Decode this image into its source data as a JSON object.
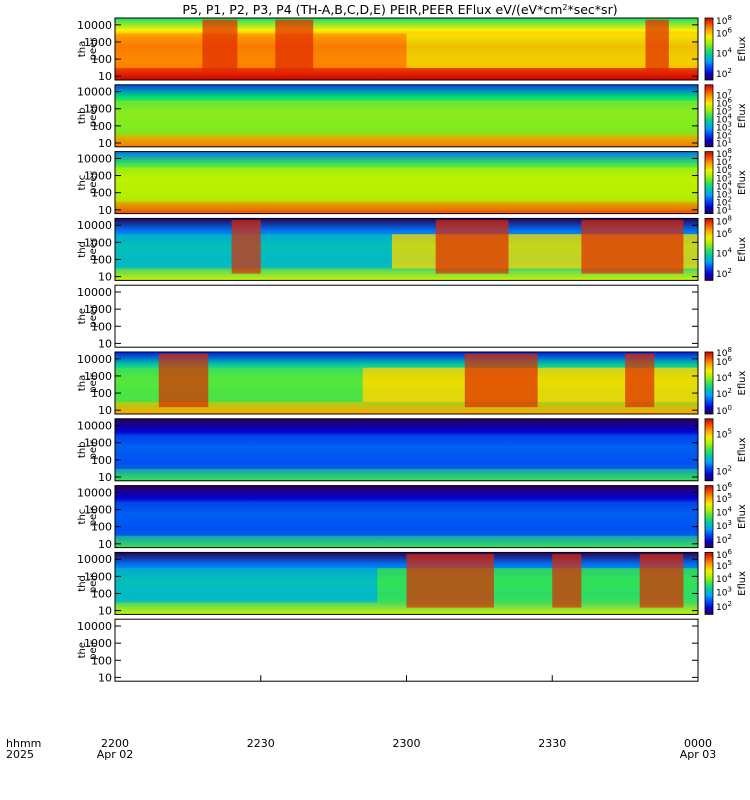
{
  "chart_data": {
    "type": "heatmap",
    "title": "P5, P1, P2, P3, P4 (TH-A,B,C,D,E) PEIR,PEER EFlux eV/(eV*cm2*sec*sr)",
    "title_parts": {
      "main": "P5, P1, P2, P3, P4 (TH-A,B,C,D,E) PEIR,PEER EFlux eV/(eV*cm",
      "sup": "2",
      "tail": "*sec*sr)"
    },
    "colorbar_label": "Eflux",
    "x_axis": {
      "ticks": [
        "2200",
        "2230",
        "2300",
        "2330",
        "0000"
      ],
      "tick_hours": [
        22.0,
        22.5,
        23.0,
        23.5,
        24.0
      ],
      "range_hours": [
        22.0,
        24.0
      ],
      "date_first": "Apr 02",
      "date_last": "Apr 03",
      "label_top": "hhmm",
      "label_bottom": "2025"
    },
    "y_axis_ticks": [
      "10",
      "100",
      "1000",
      "10000"
    ],
    "y_scale": "log",
    "y_range_eV": [
      6,
      25000
    ],
    "panels": [
      {
        "probe": "tha",
        "species": "peer",
        "label_top": "tha",
        "label_bottom": "peer",
        "data": "spectrogram",
        "cbar_ticks": [
          {
            "e": "2",
            "f": 0.1
          },
          {
            "e": "4",
            "f": 0.43
          },
          {
            "e": "6",
            "f": 0.75
          },
          {
            "e": "8",
            "f": 0.95
          }
        ],
        "bands": [
          {
            "from": 22.0,
            "to": 23.0,
            "level": 0.82
          },
          {
            "from": 23.0,
            "to": 24.0,
            "level": 0.7
          }
        ],
        "bursts": [
          [
            22.3,
            22.42
          ],
          [
            22.55,
            22.68
          ],
          [
            23.82,
            23.9
          ]
        ]
      },
      {
        "probe": "thb",
        "species": "peer",
        "label_top": "thb",
        "label_bottom": "peer",
        "data": "spectrogram",
        "cbar_ticks": [
          {
            "e": "1",
            "f": 0.05
          },
          {
            "e": "2",
            "f": 0.18
          },
          {
            "e": "3",
            "f": 0.31
          },
          {
            "e": "4",
            "f": 0.44
          },
          {
            "e": "5",
            "f": 0.57
          },
          {
            "e": "6",
            "f": 0.7
          },
          {
            "e": "7",
            "f": 0.83
          }
        ],
        "bands": [
          {
            "from": 22.0,
            "to": 24.0,
            "level": 0.55
          }
        ],
        "bursts": []
      },
      {
        "probe": "thc",
        "species": "peer",
        "label_top": "thc",
        "label_bottom": "peer",
        "data": "spectrogram",
        "cbar_ticks": [
          {
            "e": "1",
            "f": 0.05
          },
          {
            "e": "2",
            "f": 0.18
          },
          {
            "e": "3",
            "f": 0.31
          },
          {
            "e": "4",
            "f": 0.44
          },
          {
            "e": "5",
            "f": 0.57
          },
          {
            "e": "6",
            "f": 0.7
          },
          {
            "e": "7",
            "f": 0.83
          },
          {
            "e": "8",
            "f": 0.96
          }
        ],
        "bands": [
          {
            "from": 22.0,
            "to": 24.0,
            "level": 0.6
          }
        ],
        "bursts": []
      },
      {
        "probe": "thd",
        "species": "peer",
        "label_top": "thd",
        "label_bottom": "peer",
        "data": "spectrogram",
        "cbar_ticks": [
          {
            "e": "2",
            "f": 0.1
          },
          {
            "e": "4",
            "f": 0.43
          },
          {
            "e": "6",
            "f": 0.75
          },
          {
            "e": "8",
            "f": 0.95
          }
        ],
        "bands": [
          {
            "from": 22.0,
            "to": 22.95,
            "level": 0.35
          },
          {
            "from": 22.95,
            "to": 24.0,
            "level": 0.75
          }
        ],
        "bursts": [
          [
            22.4,
            22.5
          ],
          [
            23.1,
            23.35
          ],
          [
            23.6,
            23.95
          ]
        ]
      },
      {
        "probe": "the",
        "species": "peer",
        "label_top": "the",
        "label_bottom": "peer",
        "data": "none",
        "cbar_ticks": [],
        "bands": [],
        "bursts": []
      },
      {
        "probe": "tha",
        "species": "peir",
        "label_top": "tha",
        "label_bottom": "peir",
        "data": "spectrogram",
        "cbar_ticks": [
          {
            "e": "0",
            "f": 0.05
          },
          {
            "e": "2",
            "f": 0.32
          },
          {
            "e": "4",
            "f": 0.58
          },
          {
            "e": "6",
            "f": 0.84
          },
          {
            "e": "8",
            "f": 0.98
          }
        ],
        "bands": [
          {
            "from": 22.0,
            "to": 22.85,
            "level": 0.5
          },
          {
            "from": 22.85,
            "to": 24.0,
            "level": 0.75
          }
        ],
        "bursts": [
          [
            22.15,
            22.32
          ],
          [
            23.2,
            23.45
          ],
          [
            23.75,
            23.85
          ]
        ]
      },
      {
        "probe": "thb",
        "species": "peir",
        "label_top": "thb",
        "label_bottom": "peir",
        "data": "spectrogram",
        "cbar_ticks": [
          {
            "e": "2",
            "f": 0.15
          },
          {
            "e": "5",
            "f": 0.75
          }
        ],
        "bands": [
          {
            "from": 22.0,
            "to": 24.0,
            "level": 0.2
          }
        ],
        "bursts": []
      },
      {
        "probe": "thc",
        "species": "peir",
        "label_top": "thc",
        "label_bottom": "peir",
        "data": "spectrogram",
        "cbar_ticks": [
          {
            "e": "2",
            "f": 0.12
          },
          {
            "e": "3",
            "f": 0.35
          },
          {
            "e": "4",
            "f": 0.57
          },
          {
            "e": "5",
            "f": 0.78
          },
          {
            "e": "6",
            "f": 0.96
          }
        ],
        "bands": [
          {
            "from": 22.0,
            "to": 24.0,
            "level": 0.2
          }
        ],
        "bursts": []
      },
      {
        "probe": "thd",
        "species": "peir",
        "label_top": "thd",
        "label_bottom": "peir",
        "data": "spectrogram",
        "cbar_ticks": [
          {
            "e": "2",
            "f": 0.12
          },
          {
            "e": "3",
            "f": 0.35
          },
          {
            "e": "4",
            "f": 0.57
          },
          {
            "e": "5",
            "f": 0.78
          },
          {
            "e": "6",
            "f": 0.96
          }
        ],
        "bands": [
          {
            "from": 22.0,
            "to": 22.9,
            "level": 0.35
          },
          {
            "from": 22.9,
            "to": 24.0,
            "level": 0.5
          }
        ],
        "bursts": [
          [
            23.0,
            23.3
          ],
          [
            23.5,
            23.6
          ],
          [
            23.8,
            23.95
          ]
        ]
      },
      {
        "probe": "the",
        "species": "peir",
        "label_top": "the",
        "label_bottom": "peir",
        "data": "none",
        "cbar_ticks": [],
        "bands": [],
        "bursts": []
      }
    ]
  }
}
